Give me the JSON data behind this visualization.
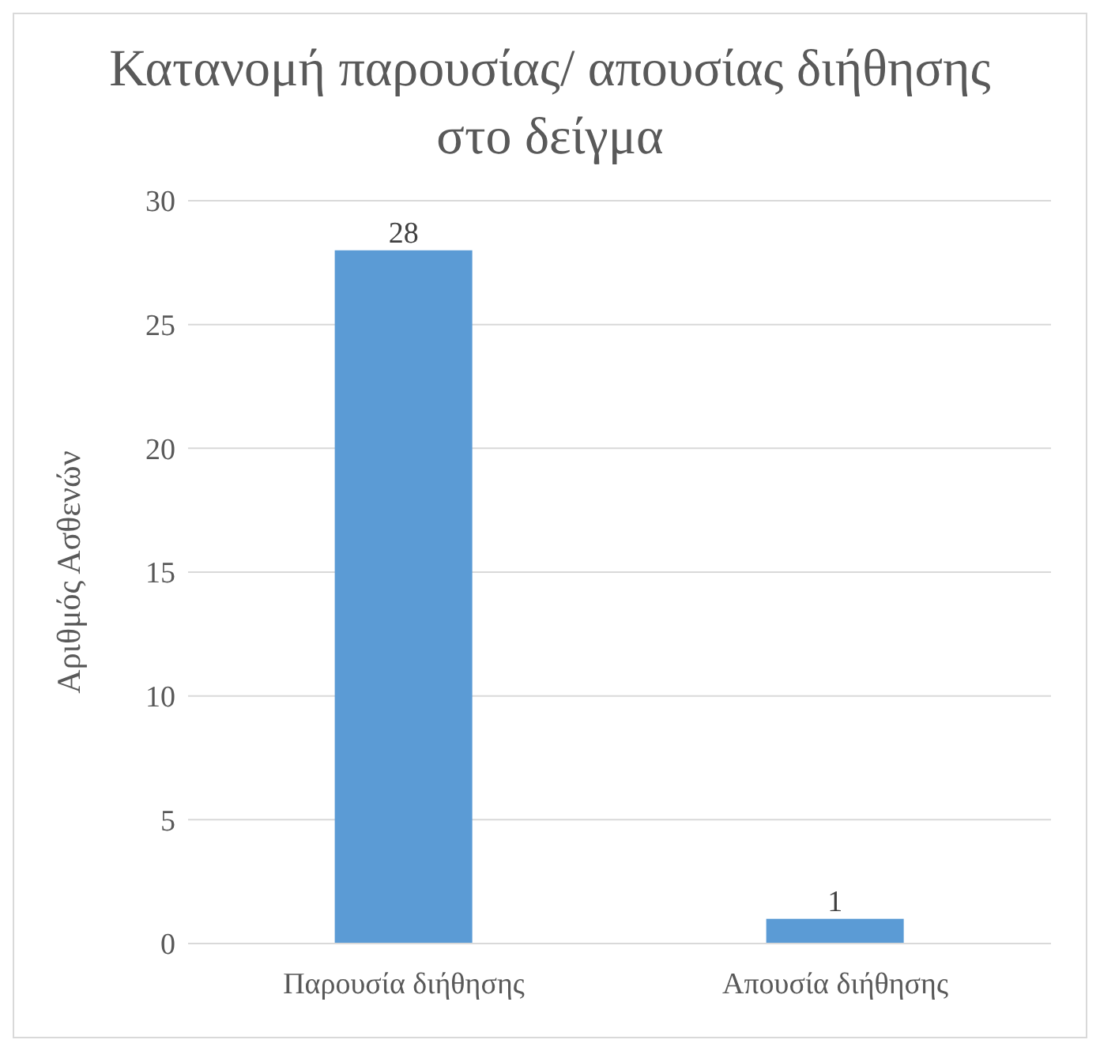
{
  "chart_data": {
    "type": "bar",
    "title": "Κατανομή παρουσίας/ απουσίας διήθησης στο δείγμα",
    "ylabel": "Αριθμός Ασθενών",
    "categories": [
      "Παρουσία διήθησης",
      "Απουσία διήθησης"
    ],
    "values": [
      28,
      1
    ],
    "color": "#5b9bd5",
    "ylim": [
      0,
      30
    ],
    "yticks": [
      0,
      5,
      10,
      15,
      20,
      25,
      30
    ],
    "grid": "y",
    "data_labels": true,
    "legend": false
  }
}
